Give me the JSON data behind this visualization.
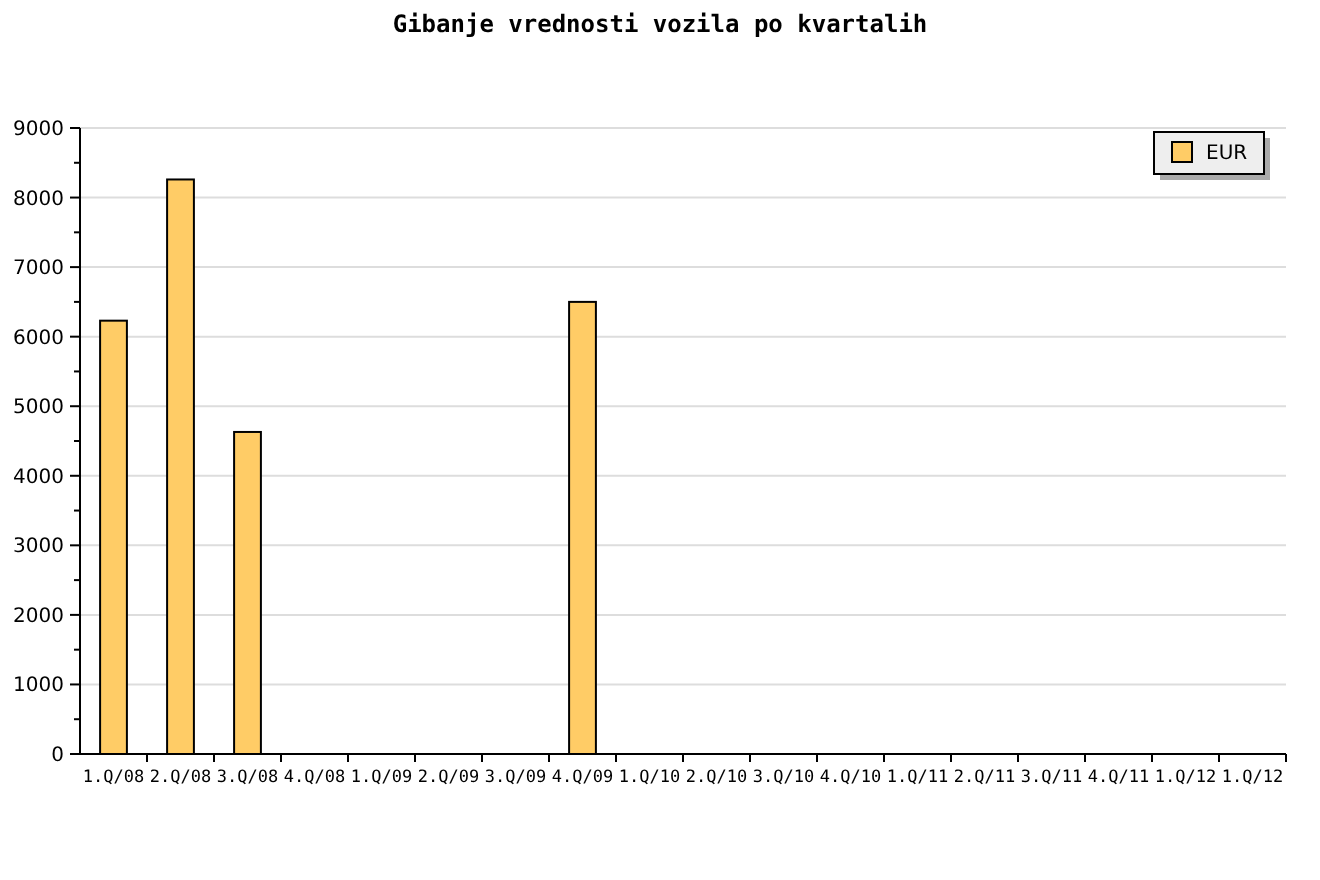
{
  "chart_data": {
    "type": "bar",
    "title": "Gibanje vrednosti vozila po kvartalih",
    "categories": [
      "1.Q/08",
      "2.Q/08",
      "3.Q/08",
      "4.Q/08",
      "1.Q/09",
      "2.Q/09",
      "3.Q/09",
      "4.Q/09",
      "1.Q/10",
      "2.Q/10",
      "3.Q/10",
      "4.Q/10",
      "1.Q/11",
      "2.Q/11",
      "3.Q/11",
      "4.Q/11",
      "1.Q/12",
      "1.Q/12"
    ],
    "series": [
      {
        "name": "EUR",
        "color": "#ffcc66",
        "values": [
          6230,
          8260,
          4630,
          null,
          null,
          null,
          null,
          6500,
          null,
          null,
          null,
          null,
          null,
          null,
          null,
          null,
          null,
          null
        ]
      }
    ],
    "ylim": [
      0,
      9000
    ],
    "yticks": [
      0,
      {
        "value": 500,
        "label": null
      },
      1000,
      {
        "value": 1500,
        "label": null
      },
      2000,
      {
        "value": 2500,
        "label": null
      },
      3000,
      {
        "value": 3500,
        "label": null
      },
      4000,
      {
        "value": 4500,
        "label": null
      },
      5000,
      {
        "value": 5500,
        "label": null
      },
      6000,
      {
        "value": 6500,
        "label": null
      },
      7000,
      {
        "value": 7500,
        "label": null
      },
      8000,
      {
        "value": 8500,
        "label": null
      },
      9000
    ],
    "grid": "y",
    "legend": "top right"
  }
}
